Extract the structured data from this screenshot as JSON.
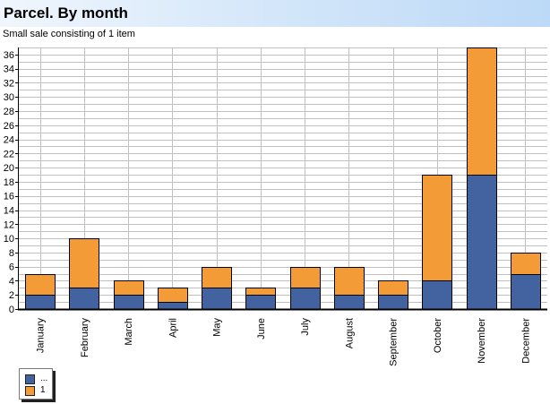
{
  "header": {
    "title": "Parcel. By month",
    "subtitle": "Small sale consisting of 1 item"
  },
  "colors": {
    "series_a": "#4263a0",
    "series_b": "#f39b36",
    "grid": "#c0c0c0"
  },
  "chart_data": {
    "type": "bar",
    "stacked": true,
    "title": "Parcel. By month",
    "subtitle": "Small sale consisting of 1 item",
    "xlabel": "",
    "ylabel": "",
    "categories": [
      "January",
      "February",
      "March",
      "April",
      "May",
      "June",
      "July",
      "August",
      "September",
      "October",
      "November",
      "December"
    ],
    "series": [
      {
        "name": "...",
        "color": "#4263a0",
        "values": [
          2,
          3,
          2,
          1,
          3,
          2,
          3,
          2,
          2,
          4,
          19,
          5
        ]
      },
      {
        "name": "1",
        "color": "#f39b36",
        "values": [
          3,
          7,
          2,
          2,
          3,
          1,
          3,
          4,
          2,
          15,
          18,
          3
        ]
      }
    ],
    "ylim": [
      0,
      37
    ],
    "yticks": [
      0,
      2,
      4,
      6,
      8,
      10,
      12,
      14,
      16,
      18,
      20,
      22,
      24,
      26,
      28,
      30,
      32,
      34,
      36
    ],
    "grid": true,
    "legend": "bottom-left"
  }
}
